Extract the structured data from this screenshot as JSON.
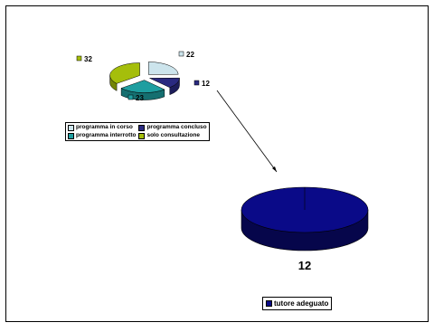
{
  "chart_data": [
    {
      "type": "pie",
      "categories": [
        "programma in corso",
        "programma concluso",
        "programma interrotto",
        "solo consultazione"
      ],
      "values": [
        22,
        12,
        23,
        32
      ],
      "data_labels": [
        "22",
        "12",
        "23",
        "32"
      ],
      "colors": [
        "#cce4ec",
        "#2a2a80",
        "#1e9ea0",
        "#a5be0b"
      ],
      "legend_position": "bottom"
    },
    {
      "type": "pie",
      "categories": [
        "tutore adeguato"
      ],
      "values": [
        12
      ],
      "data_labels": [
        "12"
      ],
      "colors": [
        "#0a0a88"
      ],
      "legend_position": "bottom"
    }
  ],
  "slide_background": "#ffffff"
}
